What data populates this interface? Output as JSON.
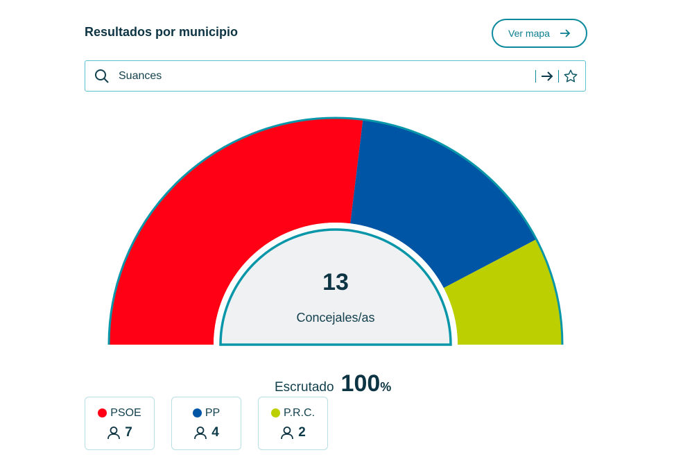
{
  "header": {
    "title": "Resultados por municipio",
    "map_button": "Ver mapa"
  },
  "search": {
    "value": "Suances"
  },
  "chart_data": {
    "type": "pie",
    "subtype": "semicircle-hemicycle",
    "center_value": "13",
    "center_label": "Concejales/as",
    "series": [
      {
        "name": "PSOE",
        "value": 7,
        "color": "#ff0015"
      },
      {
        "name": "PP",
        "value": 4,
        "color": "#0055a4"
      },
      {
        "name": "P.R.C.",
        "value": 2,
        "color": "#bccf00"
      }
    ]
  },
  "scrutiny": {
    "label": "Escrutado",
    "value": "100",
    "unit": "%"
  }
}
